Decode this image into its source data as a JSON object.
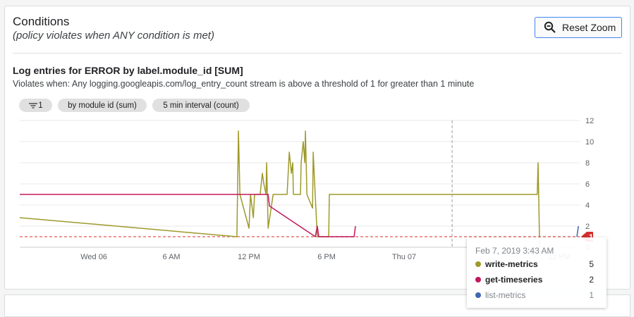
{
  "header": {
    "title": "Conditions",
    "subtitle": "(policy violates when ANY condition is met)",
    "reset_zoom_label": "Reset Zoom"
  },
  "condition": {
    "title": "Log entries for ERROR by label.module_id [SUM]",
    "description": "Violates when: Any logging.googleapis.com/log_entry_count stream is above a threshold of 1 for greater than 1 minute",
    "chips": [
      {
        "icon": "filter-icon",
        "label": "1"
      },
      {
        "label": "by module id (sum)"
      },
      {
        "label": "5 min interval (count)"
      }
    ]
  },
  "tooltip": {
    "date": "Feb 7, 2019 3:43 AM",
    "rows": [
      {
        "name": "write-metrics",
        "value": "5",
        "color": "#9e9a2a"
      },
      {
        "name": "get-timeseries",
        "value": "2",
        "color": "#c2185b"
      },
      {
        "name": "list-metrics",
        "value": "1",
        "color": "#3f67b0"
      }
    ]
  },
  "chart_data": {
    "type": "line",
    "x_range": [
      "2019-02-05T18:16",
      "2019-02-07T13:35"
    ],
    "ylim": [
      0,
      12
    ],
    "y_ticks": [
      "0",
      "2",
      "4",
      "6",
      "8",
      "10",
      "12"
    ],
    "x_ticks": [
      {
        "t": "2019-02-06T00:00",
        "label": "Wed 06"
      },
      {
        "t": "2019-02-06T06:00",
        "label": "6 AM"
      },
      {
        "t": "2019-02-06T12:00",
        "label": "12 PM"
      },
      {
        "t": "2019-02-06T18:00",
        "label": "6 PM"
      },
      {
        "t": "2019-02-07T00:00",
        "label": "Thu 07"
      },
      {
        "t": "2019-02-07T12:00",
        "label": "12 PM"
      }
    ],
    "grid": true,
    "threshold": {
      "value": 1,
      "label": "1",
      "color": "#d32f2f"
    },
    "hover_time": "2019-02-07T03:43",
    "series": [
      {
        "name": "write-metrics",
        "color": "#9e9a2a",
        "points": [
          [
            "2019-02-05T18:16",
            2.8
          ],
          [
            "2019-02-06T11:04",
            1
          ],
          [
            "2019-02-06T11:11",
            11
          ],
          [
            "2019-02-06T11:18",
            5
          ],
          [
            "2019-02-06T12:00",
            1.8
          ],
          [
            "2019-02-06T12:07",
            5
          ],
          [
            "2019-02-06T12:20",
            2.8
          ],
          [
            "2019-02-06T12:26",
            5
          ],
          [
            "2019-02-06T12:52",
            5
          ],
          [
            "2019-02-06T13:02",
            7
          ],
          [
            "2019-02-06T13:09",
            6
          ],
          [
            "2019-02-06T13:19",
            5
          ],
          [
            "2019-02-06T13:22",
            8
          ],
          [
            "2019-02-06T13:29",
            1.8
          ],
          [
            "2019-02-06T13:52",
            5
          ],
          [
            "2019-02-06T14:57",
            5
          ],
          [
            "2019-02-06T15:07",
            9
          ],
          [
            "2019-02-06T15:17",
            7
          ],
          [
            "2019-02-06T15:23",
            8
          ],
          [
            "2019-02-06T15:26",
            5
          ],
          [
            "2019-02-06T15:59",
            5
          ],
          [
            "2019-02-06T16:02",
            8
          ],
          [
            "2019-02-06T16:12",
            10
          ],
          [
            "2019-02-06T16:19",
            8
          ],
          [
            "2019-02-06T16:22",
            11
          ],
          [
            "2019-02-06T16:29",
            5
          ],
          [
            "2019-02-06T16:55",
            3.7
          ],
          [
            "2019-02-06T16:58",
            9
          ],
          [
            "2019-02-06T17:05",
            6
          ],
          [
            "2019-02-06T17:17",
            1
          ],
          [
            "2019-02-06T18:10",
            1
          ],
          [
            "2019-02-06T18:13",
            5
          ],
          [
            "2019-02-07T10:18",
            5
          ],
          [
            "2019-02-07T10:22",
            8
          ],
          [
            "2019-02-07T10:29",
            0
          ]
        ]
      },
      {
        "name": "get-timeseries",
        "color": "#c2185b",
        "points": [
          [
            "2019-02-05T18:16",
            5
          ],
          [
            "2019-02-06T13:29",
            5
          ],
          [
            "2019-02-06T13:35",
            3.9
          ],
          [
            "2019-02-06T17:08",
            1
          ],
          [
            "2019-02-06T17:17",
            2
          ],
          [
            "2019-02-06T17:24",
            1
          ],
          [
            "2019-02-06T20:08",
            1
          ],
          [
            "2019-02-06T20:14",
            2
          ]
        ]
      },
      {
        "name": "list-metrics",
        "color": "#3f67b0",
        "points": [
          [
            "2019-02-07T13:22",
            1
          ],
          [
            "2019-02-07T13:29",
            2
          ]
        ]
      }
    ]
  }
}
